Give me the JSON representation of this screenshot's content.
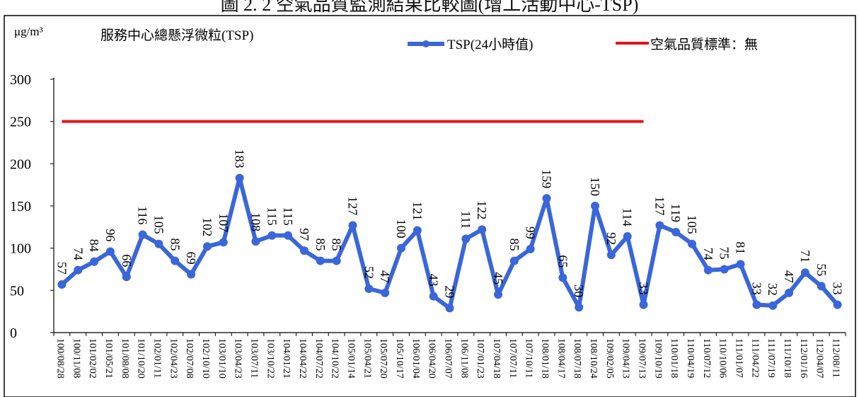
{
  "caption": "圖 2. 2 空氣品質監測結果比較圖(增工活動中心-TSP)",
  "chart_data": {
    "type": "line",
    "title": "服務中心總懸浮微粒(TSP)",
    "ylabel": "μg/m³",
    "xlabel": "",
    "ylim": [
      0,
      300
    ],
    "yticks": [
      0,
      50,
      100,
      150,
      200,
      250,
      300
    ],
    "legend_position": "top",
    "grid": false,
    "categories": [
      "100/08/28",
      "100/11/08",
      "101/02/02",
      "101/05/21",
      "101/08/08",
      "101/10/20",
      "102/01/11",
      "102/04/23",
      "102/07/08",
      "102/10/10",
      "103/01/10",
      "103/04/23",
      "103/07/11",
      "103/10/22",
      "104/01/21",
      "104/04/22",
      "104/07/22",
      "104/10/22",
      "105/01/14",
      "105/04/21",
      "105/07/20",
      "105/10/17",
      "106/01/04",
      "106/04/20",
      "106/07/07",
      "106/11/08",
      "107/01/23",
      "107/04/18",
      "107/07/11",
      "107/10/11",
      "108/01/18",
      "108/04/17",
      "108/07/18",
      "108/10/24",
      "109/02/05",
      "109/04/13",
      "109/07/13",
      "109/10/19",
      "110/01/18",
      "110/04/19",
      "110/07/12",
      "110/10/06",
      "111/01/07",
      "111/04/22",
      "111/07/19",
      "111/10/18",
      "112/01/16",
      "112/04/07",
      "112/08/11"
    ],
    "series": [
      {
        "name": "TSP(24小時值)",
        "color": "#3a66d9",
        "values": [
          57,
          74,
          84,
          96,
          66,
          116,
          105,
          85,
          69,
          102,
          107,
          183,
          108,
          115,
          115,
          97,
          85,
          85,
          127,
          52,
          47,
          100,
          121,
          43,
          29,
          111,
          122,
          45,
          85,
          99,
          159,
          65,
          30,
          150,
          92,
          114,
          33,
          127,
          119,
          105,
          74,
          75,
          81,
          33,
          32,
          47,
          71,
          55,
          33
        ]
      },
      {
        "name": "空氣品質標準：無",
        "color": "#e8131b",
        "value": 250,
        "x_range": [
          "100/08/28",
          "109/07/13"
        ]
      }
    ]
  }
}
